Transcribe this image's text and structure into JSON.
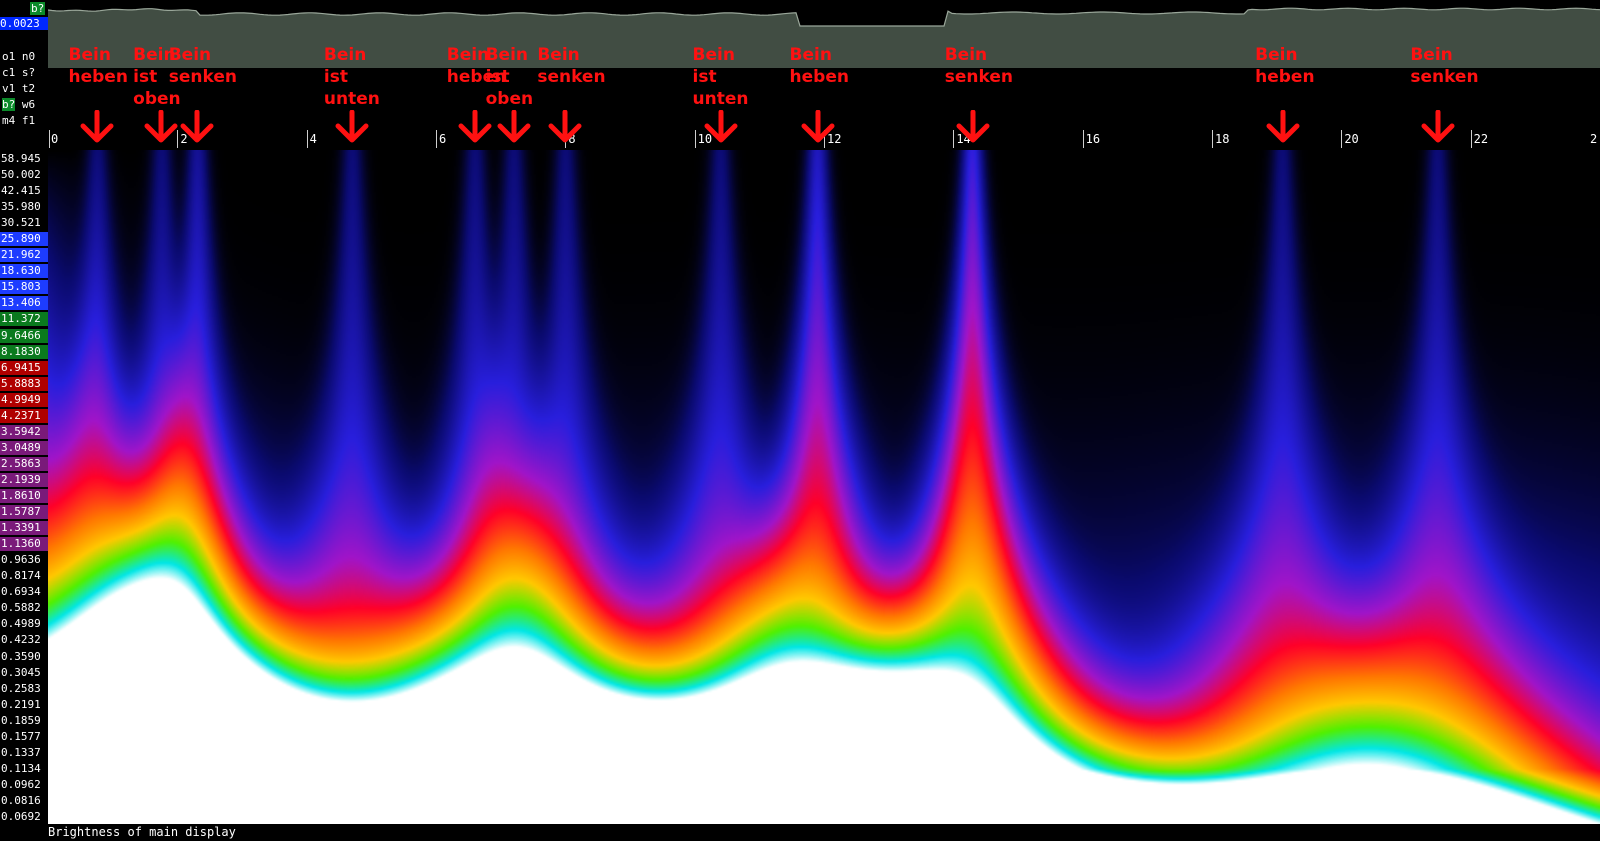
{
  "left_panel": {
    "tag_top": "b?",
    "top_value": "0.0023",
    "keys": [
      {
        "a": "o1",
        "b": "n0",
        "hl": false
      },
      {
        "a": "c1",
        "b": "s?",
        "hl": false
      },
      {
        "a": "v1",
        "b": "t2",
        "hl": false
      },
      {
        "a": "b?",
        "b": "w6",
        "hl": true
      },
      {
        "a": "m4",
        "b": "f1",
        "hl": false
      }
    ]
  },
  "colors": {
    "waveform_fill": "#414d43",
    "waveform_edge": "#9aa79a",
    "annotation": "#ff1111"
  },
  "chart_data": {
    "type": "heatmap",
    "title": "",
    "xlabel": "",
    "ylabel": "",
    "x_range": [
      0,
      24
    ],
    "x_ticks": [
      "0",
      "2",
      "4",
      "6",
      "8",
      "10",
      "12",
      "14",
      "16",
      "18",
      "20",
      "22",
      "2"
    ],
    "y_scale": "log",
    "y_range": [
      0.0692,
      58.945
    ],
    "y_tick_labels": [
      {
        "text": "58.945",
        "color": "#000000"
      },
      {
        "text": "50.002",
        "color": "#000000"
      },
      {
        "text": "42.415",
        "color": "#000000"
      },
      {
        "text": "35.980",
        "color": "#000000"
      },
      {
        "text": "30.521",
        "color": "#000000"
      },
      {
        "text": "25.890",
        "color": "#1d3cff"
      },
      {
        "text": "21.962",
        "color": "#1d3cff"
      },
      {
        "text": "18.630",
        "color": "#1d3cff"
      },
      {
        "text": "15.803",
        "color": "#1d3cff"
      },
      {
        "text": "13.406",
        "color": "#1d3cff"
      },
      {
        "text": "11.372",
        "color": "#0a7a1e"
      },
      {
        "text": "9.6466",
        "color": "#0a7a1e"
      },
      {
        "text": "8.1830",
        "color": "#0a7a1e"
      },
      {
        "text": "6.9415",
        "color": "#b00000"
      },
      {
        "text": "5.8883",
        "color": "#b00000"
      },
      {
        "text": "4.9949",
        "color": "#b00000"
      },
      {
        "text": "4.2371",
        "color": "#b00000"
      },
      {
        "text": "3.5942",
        "color": "#7a1a7a"
      },
      {
        "text": "3.0489",
        "color": "#7a1a7a"
      },
      {
        "text": "2.5863",
        "color": "#7a1a7a"
      },
      {
        "text": "2.1939",
        "color": "#7a1a7a"
      },
      {
        "text": "1.8610",
        "color": "#7a1a7a"
      },
      {
        "text": "1.5787",
        "color": "#7a1a7a"
      },
      {
        "text": "1.3391",
        "color": "#7a1a7a"
      },
      {
        "text": "1.1360",
        "color": "#7a1a7a"
      },
      {
        "text": "0.9636",
        "color": "#000000"
      },
      {
        "text": "0.8174",
        "color": "#000000"
      },
      {
        "text": "0.6934",
        "color": "#000000"
      },
      {
        "text": "0.5882",
        "color": "#000000"
      },
      {
        "text": "0.4989",
        "color": "#000000"
      },
      {
        "text": "0.4232",
        "color": "#000000"
      },
      {
        "text": "0.3590",
        "color": "#000000"
      },
      {
        "text": "0.3045",
        "color": "#000000"
      },
      {
        "text": "0.2583",
        "color": "#000000"
      },
      {
        "text": "0.2191",
        "color": "#000000"
      },
      {
        "text": "0.1859",
        "color": "#000000"
      },
      {
        "text": "0.1577",
        "color": "#000000"
      },
      {
        "text": "0.1337",
        "color": "#000000"
      },
      {
        "text": "0.1134",
        "color": "#000000"
      },
      {
        "text": "0.0962",
        "color": "#000000"
      },
      {
        "text": "0.0816",
        "color": "#000000"
      },
      {
        "text": "0.0692",
        "color": "#000000"
      }
    ],
    "annotations": [
      {
        "label": "Bein\nheben",
        "x": 0.75
      },
      {
        "label": "Bein\nist\noben",
        "x": 1.75
      },
      {
        "label": "Bein\nsenken",
        "x": 2.3
      },
      {
        "label": "Bein\nist\nunten",
        "x": 4.7
      },
      {
        "label": "Bein\nheben",
        "x": 6.6
      },
      {
        "label": "Bein\nist\noben",
        "x": 7.2
      },
      {
        "label": "Bein\nsenken",
        "x": 8.0
      },
      {
        "label": "Bein\nist\nunten",
        "x": 10.4
      },
      {
        "label": "Bein\nheben",
        "x": 11.9
      },
      {
        "label": "Bein\nsenken",
        "x": 14.3
      },
      {
        "label": "Bein\nheben",
        "x": 19.1
      },
      {
        "label": "Bein\nsenken",
        "x": 21.5
      }
    ]
  },
  "status_bar": {
    "text": "Brightness of main display"
  }
}
